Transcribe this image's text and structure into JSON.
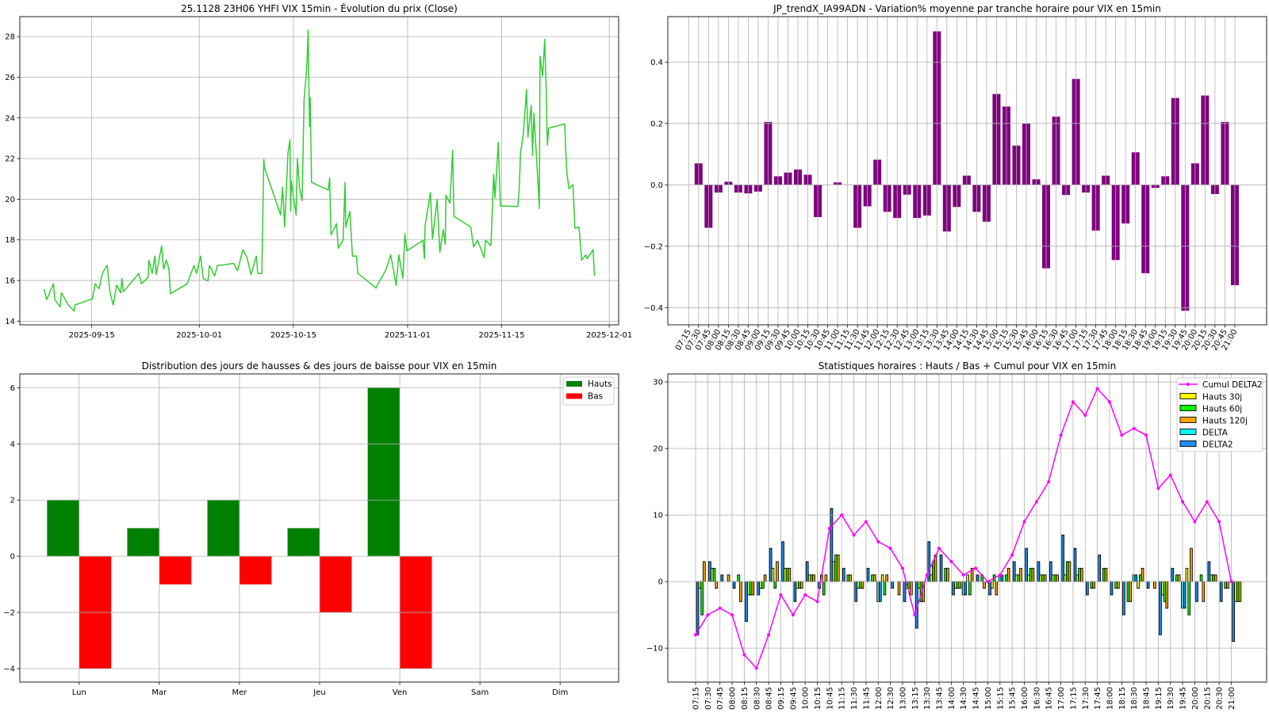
{
  "chart_data": [
    {
      "id": "price",
      "type": "line",
      "title": "25.1128 23H06 YHFI VIX 15min - Évolution du prix (Close)",
      "x_unit": "days since 2025-10-01",
      "xlim": [
        -26.7,
        62.4
      ],
      "ylim": [
        13.82,
        28.98
      ],
      "grid": true,
      "color": "#32cd32",
      "xticks": [
        {
          "v": -16,
          "label": "2025-09-15"
        },
        {
          "v": 0,
          "label": "2025-10-01"
        },
        {
          "v": 14,
          "label": "2025-10-15"
        },
        {
          "v": 31,
          "label": "2025-11-01"
        },
        {
          "v": 45,
          "label": "2025-11-15"
        },
        {
          "v": 61,
          "label": "2025-12-01"
        }
      ],
      "yticks": [
        {
          "v": 14,
          "label": "14"
        },
        {
          "v": 16,
          "label": "16"
        },
        {
          "v": 18,
          "label": "18"
        },
        {
          "v": 20,
          "label": "20"
        },
        {
          "v": 22,
          "label": "22"
        },
        {
          "v": 24,
          "label": "24"
        },
        {
          "v": 26,
          "label": "26"
        },
        {
          "v": 28,
          "label": "28"
        }
      ],
      "points": [
        [
          -23.1,
          15.57
        ],
        [
          -22.7,
          15.06
        ],
        [
          -21.7,
          15.84
        ],
        [
          -21.5,
          15.06
        ],
        [
          -20.7,
          14.7
        ],
        [
          -20.5,
          15.4
        ],
        [
          -19.5,
          14.8
        ],
        [
          -18.6,
          14.5
        ],
        [
          -18.5,
          14.8
        ],
        [
          -15.9,
          15.1
        ],
        [
          -15.5,
          15.84
        ],
        [
          -14.9,
          15.6
        ],
        [
          -14.5,
          16.23
        ],
        [
          -14.3,
          16.44
        ],
        [
          -13.7,
          16.74
        ],
        [
          -13.3,
          15.45
        ],
        [
          -12.8,
          14.8
        ],
        [
          -12.3,
          15.78
        ],
        [
          -11.7,
          15.4
        ],
        [
          -11.5,
          16.1
        ],
        [
          -11.3,
          15.45
        ],
        [
          -9.0,
          16.35
        ],
        [
          -8.6,
          15.84
        ],
        [
          -7.6,
          16.16
        ],
        [
          -7.5,
          17.0
        ],
        [
          -7.0,
          16.35
        ],
        [
          -6.6,
          17.2
        ],
        [
          -6.4,
          16.3
        ],
        [
          -5.6,
          17.7
        ],
        [
          -5.3,
          16.55
        ],
        [
          -4.9,
          17.0
        ],
        [
          -4.5,
          16.55
        ],
        [
          -4.3,
          15.35
        ],
        [
          -1.8,
          15.84
        ],
        [
          -0.8,
          16.74
        ],
        [
          -0.4,
          16.35
        ],
        [
          0.2,
          17.2
        ],
        [
          0.6,
          16.1
        ],
        [
          1.3,
          15.97
        ],
        [
          1.5,
          16.74
        ],
        [
          2.3,
          16.23
        ],
        [
          2.7,
          16.74
        ],
        [
          3.9,
          16.78
        ],
        [
          5.1,
          16.84
        ],
        [
          5.7,
          16.48
        ],
        [
          6.5,
          17.52
        ],
        [
          7.1,
          17.13
        ],
        [
          7.7,
          16.29
        ],
        [
          8.5,
          17.2
        ],
        [
          8.7,
          16.35
        ],
        [
          9.3,
          16.35
        ],
        [
          9.6,
          21.95
        ],
        [
          9.7,
          21.56
        ],
        [
          12.1,
          19.22
        ],
        [
          12.4,
          20.58
        ],
        [
          12.7,
          18.63
        ],
        [
          13.2,
          22.27
        ],
        [
          13.5,
          22.93
        ],
        [
          13.6,
          19.4
        ],
        [
          13.7,
          20.9
        ],
        [
          14.4,
          19.22
        ],
        [
          14.6,
          22.0
        ],
        [
          14.9,
          20.58
        ],
        [
          15.3,
          19.93
        ],
        [
          15.6,
          24.88
        ],
        [
          16.0,
          26.45
        ],
        [
          16.2,
          28.33
        ],
        [
          16.4,
          23.58
        ],
        [
          16.5,
          25.0
        ],
        [
          16.7,
          20.83
        ],
        [
          19.2,
          20.45
        ],
        [
          19.4,
          21.04
        ],
        [
          19.6,
          18.24
        ],
        [
          20.4,
          18.8
        ],
        [
          20.7,
          17.59
        ],
        [
          21.4,
          18.0
        ],
        [
          21.7,
          20.83
        ],
        [
          21.8,
          18.63
        ],
        [
          22.4,
          19.4
        ],
        [
          22.8,
          17.2
        ],
        [
          23.4,
          17.2
        ],
        [
          23.6,
          16.35
        ],
        [
          26.3,
          15.63
        ],
        [
          26.7,
          15.9
        ],
        [
          27.7,
          16.48
        ],
        [
          28.5,
          17.26
        ],
        [
          29.3,
          15.76
        ],
        [
          29.7,
          17.26
        ],
        [
          30.3,
          16.1
        ],
        [
          30.6,
          18.3
        ],
        [
          30.9,
          17.46
        ],
        [
          33.3,
          17.98
        ],
        [
          33.5,
          17.07
        ],
        [
          33.6,
          18.7
        ],
        [
          34.4,
          20.32
        ],
        [
          34.7,
          18.04
        ],
        [
          35.4,
          19.99
        ],
        [
          35.8,
          17.39
        ],
        [
          36.3,
          18.5
        ],
        [
          36.6,
          17.78
        ],
        [
          36.7,
          20.19
        ],
        [
          37.3,
          19.8
        ],
        [
          37.7,
          22.4
        ],
        [
          37.9,
          19.15
        ],
        [
          40.4,
          18.63
        ],
        [
          40.8,
          17.65
        ],
        [
          41.4,
          17.98
        ],
        [
          42.4,
          17.13
        ],
        [
          42.6,
          17.98
        ],
        [
          43.4,
          17.72
        ],
        [
          43.8,
          21.23
        ],
        [
          44.0,
          20.06
        ],
        [
          44.5,
          22.8
        ],
        [
          44.8,
          19.67
        ],
        [
          47.4,
          19.64
        ],
        [
          47.6,
          20.45
        ],
        [
          47.8,
          22.27
        ],
        [
          48.2,
          23.18
        ],
        [
          48.7,
          25.4
        ],
        [
          48.9,
          23.05
        ],
        [
          49.4,
          24.62
        ],
        [
          49.6,
          22.14
        ],
        [
          49.8,
          24.23
        ],
        [
          50.4,
          20.84
        ],
        [
          50.6,
          19.54
        ],
        [
          50.7,
          27.03
        ],
        [
          51.1,
          26.05
        ],
        [
          51.4,
          27.87
        ],
        [
          51.6,
          25.5
        ],
        [
          51.8,
          22.66
        ],
        [
          52.0,
          23.5
        ],
        [
          54.4,
          23.7
        ],
        [
          54.5,
          22.54
        ],
        [
          54.7,
          21.3
        ],
        [
          55.0,
          20.52
        ],
        [
          55.6,
          20.71
        ],
        [
          55.9,
          18.57
        ],
        [
          56.5,
          18.63
        ],
        [
          56.9,
          17.0
        ],
        [
          57.5,
          17.26
        ],
        [
          57.7,
          17.07
        ],
        [
          58.6,
          17.52
        ],
        [
          58.8,
          16.22
        ]
      ]
    },
    {
      "id": "hourly_variation",
      "type": "bar",
      "title": "JP_trendX_IA99ADN - Variation% moyenne par tranche horaire pour VIX en 15min",
      "ylim": [
        -0.456,
        0.548
      ],
      "grid": true,
      "color": "#800080",
      "yticks": [
        {
          "v": -0.4,
          "label": "−0.4"
        },
        {
          "v": -0.2,
          "label": "−0.2"
        },
        {
          "v": 0,
          "label": "0.0"
        },
        {
          "v": 0.2,
          "label": "0.2"
        },
        {
          "v": 0.4,
          "label": "0.4"
        }
      ],
      "categories": [
        "07:15",
        "07:30",
        "07:45",
        "08:00",
        "08:15",
        "08:30",
        "08:45",
        "09:00",
        "09:15",
        "09:30",
        "09:45",
        "10:00",
        "10:15",
        "10:30",
        "10:45",
        "11:00",
        "11:15",
        "11:30",
        "11:45",
        "12:00",
        "12:15",
        "12:30",
        "12:45",
        "13:00",
        "13:15",
        "13:30",
        "13:45",
        "14:00",
        "14:15",
        "14:30",
        "14:45",
        "15:00",
        "15:15",
        "15:30",
        "15:45",
        "16:00",
        "16:15",
        "16:30",
        "16:45",
        "17:00",
        "17:15",
        "17:30",
        "17:45",
        "18:00",
        "18:15",
        "18:30",
        "18:45",
        "19:00",
        "19:15",
        "19:30",
        "19:45",
        "20:00",
        "20:15",
        "20:30",
        "20:45",
        "21:00"
      ],
      "values": [
        0,
        0.07,
        -0.14,
        -0.025,
        0.01,
        -0.025,
        -0.028,
        -0.022,
        0.205,
        0.028,
        0.04,
        0.05,
        0.033,
        -0.105,
        0,
        0.008,
        0.001,
        -0.14,
        -0.07,
        0.082,
        -0.088,
        -0.108,
        -0.032,
        -0.108,
        -0.1,
        0.5,
        -0.152,
        -0.072,
        0.03,
        -0.088,
        -0.12,
        0.296,
        0.255,
        0.128,
        0.2,
        0.018,
        -0.272,
        0.222,
        -0.033,
        0.345,
        -0.025,
        -0.149,
        0.03,
        -0.245,
        -0.126,
        0.106,
        -0.288,
        -0.01,
        0.028,
        0.283,
        -0.41,
        0.07,
        0.291,
        -0.03,
        0.205,
        -0.327
      ]
    },
    {
      "id": "weekday_distribution",
      "type": "bar",
      "title": "Distribution des jours de hausses & des jours de baisse pour VIX en 15min",
      "ylim": [
        -4.48,
        6.49
      ],
      "grid": true,
      "legend": "top-right",
      "yticks": [
        {
          "v": -4,
          "label": "−4"
        },
        {
          "v": -2,
          "label": "−2"
        },
        {
          "v": 0,
          "label": "0"
        },
        {
          "v": 2,
          "label": "2"
        },
        {
          "v": 4,
          "label": "4"
        },
        {
          "v": 6,
          "label": "6"
        }
      ],
      "categories": [
        "Lun",
        "Mar",
        "Mer",
        "Jeu",
        "Ven",
        "Sam",
        "Dim"
      ],
      "series": [
        {
          "name": "Hauts",
          "color": "#008000",
          "values": [
            2,
            1,
            2,
            1,
            6,
            0,
            0
          ]
        },
        {
          "name": "Bas",
          "color": "#ff0000",
          "values": [
            -4,
            -1,
            -1,
            -2,
            -4,
            0,
            0
          ]
        }
      ]
    },
    {
      "id": "hourly_stats",
      "type": "bar",
      "title": "Statistiques horaires : Hauts / Bas + Cumul pour VIX en 15min",
      "ylim": [
        -15.1,
        31.2
      ],
      "grid": true,
      "legend": "top-right",
      "yticks": [
        {
          "v": -10,
          "label": "−10"
        },
        {
          "v": 0,
          "label": "0"
        },
        {
          "v": 10,
          "label": "10"
        },
        {
          "v": 20,
          "label": "20"
        },
        {
          "v": 30,
          "label": "30"
        }
      ],
      "categories": [
        "07:15",
        "07:30",
        "07:45",
        "08:00",
        "08:15",
        "08:30",
        "08:45",
        "09:15",
        "09:45",
        "10:00",
        "10:15",
        "10:45",
        "11:15",
        "11:30",
        "11:45",
        "12:00",
        "12:30",
        "13:00",
        "13:15",
        "13:30",
        "13:45",
        "14:00",
        "14:30",
        "14:45",
        "15:00",
        "15:15",
        "15:45",
        "16:00",
        "16:30",
        "16:45",
        "17:00",
        "17:15",
        "17:30",
        "17:45",
        "18:00",
        "18:15",
        "18:30",
        "18:45",
        "19:15",
        "19:30",
        "19:45",
        "20:00",
        "20:15",
        "20:30",
        "21:00"
      ],
      "line": {
        "name": "Cumul DELTA2",
        "color": "#ff00ff",
        "values": [
          -8,
          -5,
          -4,
          -5,
          -11,
          -13,
          -8,
          -2,
          -5,
          -2,
          -3,
          8,
          10,
          7,
          9,
          6,
          5,
          2,
          -5,
          1,
          5,
          3,
          1,
          2,
          0,
          1,
          4,
          9,
          12,
          15,
          22,
          27,
          25,
          29,
          27,
          22,
          23,
          22,
          14,
          16,
          12,
          9,
          12,
          9,
          0
        ]
      },
      "series": [
        {
          "name": "Hauts 30j",
          "color": "#ffff00",
          "values": [
            -1,
            2,
            0,
            0,
            -2,
            -1,
            2,
            2,
            -1,
            1,
            1,
            3,
            0,
            -1,
            0,
            1,
            0,
            -1,
            -1,
            1,
            0,
            -1,
            1,
            0,
            -1,
            0,
            1,
            1,
            1,
            1,
            1,
            1,
            0,
            0,
            0,
            0,
            -1,
            0,
            -2,
            0,
            2,
            0,
            1,
            0,
            -3
          ]
        },
        {
          "name": "Hauts 60j",
          "color": "#00ff00",
          "values": [
            -5,
            2,
            0,
            1,
            -2,
            -1,
            -1,
            2,
            -1,
            1,
            -2,
            4,
            1,
            -1,
            1,
            -2,
            0,
            -1,
            -3,
            3,
            2,
            -1,
            -2,
            1,
            1,
            1,
            1,
            2,
            1,
            1,
            3,
            2,
            -1,
            2,
            -1,
            -3,
            1,
            0,
            -3,
            1,
            -5,
            1,
            1,
            -1,
            -3
          ]
        },
        {
          "name": "Hauts 120j",
          "color": "#ffa500",
          "values": [
            3,
            -1,
            1,
            -3,
            -2,
            1,
            3,
            2,
            -1,
            1,
            1,
            4,
            1,
            -1,
            1,
            1,
            -2,
            -2,
            -3,
            4,
            2,
            -1,
            2,
            -1,
            -2,
            2,
            2,
            2,
            1,
            1,
            3,
            2,
            -1,
            2,
            -1,
            -3,
            2,
            -1,
            -4,
            1,
            5,
            -3,
            1,
            -1,
            -3
          ]
        },
        {
          "name": "DELTA",
          "color": "#00ffff",
          "values": [
            0,
            0,
            0,
            0,
            0,
            0,
            0,
            0,
            0,
            0,
            0,
            0,
            0,
            0,
            0,
            -3,
            0,
            0,
            0,
            0,
            0,
            0,
            -2,
            0,
            0,
            1,
            0,
            0,
            0,
            0,
            0,
            0,
            0,
            0,
            0,
            0,
            1,
            0,
            0,
            0,
            -4,
            0,
            0,
            0,
            0
          ]
        },
        {
          "name": "DELTA2",
          "color": "#1e90ff",
          "values": [
            -8,
            3,
            1,
            -1,
            -6,
            -2,
            5,
            6,
            -3,
            3,
            -1,
            11,
            2,
            -3,
            2,
            -3,
            -1,
            -3,
            -7,
            6,
            4,
            -2,
            -2,
            1,
            -2,
            1,
            3,
            5,
            3,
            3,
            7,
            5,
            -2,
            4,
            -2,
            -5,
            1,
            -1,
            -8,
            2,
            -4,
            -3,
            3,
            -3,
            -9
          ]
        }
      ]
    }
  ]
}
